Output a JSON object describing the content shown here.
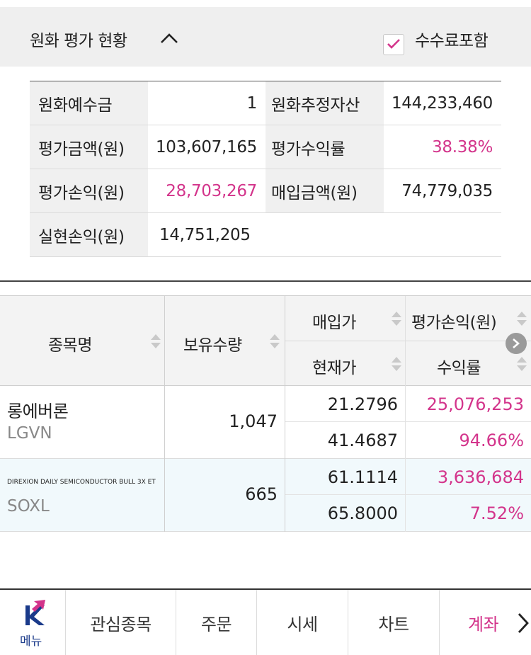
{
  "header": {
    "title": "원화 평가 현황",
    "fee_label": "수수료포함",
    "fee_checked": true
  },
  "summary": {
    "rows": [
      {
        "l1": "원화예수금",
        "v1": "1",
        "l2": "원화추정자산",
        "v2": "144,233,460"
      },
      {
        "l1": "평가금액(원)",
        "v1": "103,607,165",
        "l2": "평가수익률",
        "v2": "38.38%"
      },
      {
        "l1": "평가손익(원)",
        "v1": "28,703,267",
        "l2": "매입금액(원)",
        "v2": "74,779,035"
      },
      {
        "l1": "실현손익(원)",
        "v1": "14,751,205",
        "l2": "",
        "v2": ""
      }
    ]
  },
  "grid": {
    "headers": {
      "name": "종목명",
      "qty": "보유수량",
      "buy_price": "매입가",
      "pnl": "평가손익(원)",
      "cur_price": "현재가",
      "rate": "수익률"
    },
    "rows": [
      {
        "name": "롱에버론",
        "code": "LGVN",
        "qty": "1,047",
        "buy_price": "21.2796",
        "pnl": "25,076,253",
        "cur_price": "41.4687",
        "rate": "94.66%"
      },
      {
        "name": "DIREXION DAILY SEMICONDUCTOR BULL 3X ET",
        "code": "SOXL",
        "qty": "665",
        "buy_price": "61.1114",
        "pnl": "3,636,684",
        "cur_price": "65.8000",
        "rate": "7.52%"
      }
    ]
  },
  "nav": {
    "menu_label": "메뉴",
    "items": [
      "관심종목",
      "주문",
      "시세",
      "차트",
      "계좌"
    ],
    "active": "계좌"
  },
  "colors": {
    "accent_pink": "#d3348b",
    "nav_blue": "#1a3a8a",
    "header_bg": "#efefef",
    "alt_row_bg": "#f1f9fc"
  }
}
